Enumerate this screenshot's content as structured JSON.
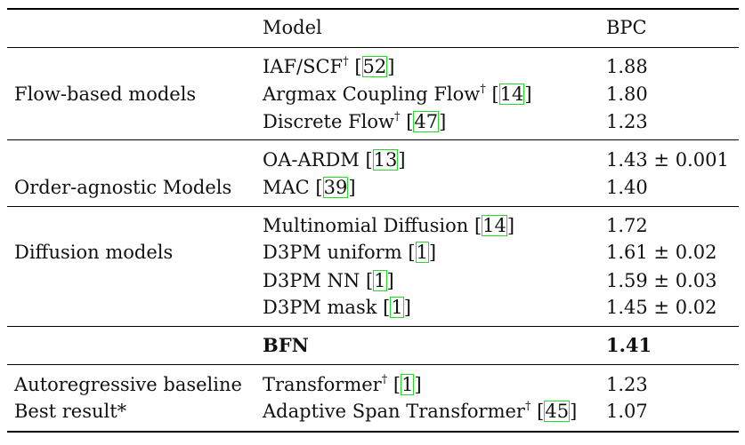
{
  "header": {
    "model": "Model",
    "bpc": "BPC"
  },
  "groups": [
    {
      "label": "Flow-based models",
      "rows": [
        {
          "model": "IAF/SCF",
          "dagger": "†",
          "cite": "52",
          "bpc": "1.88"
        },
        {
          "model": "Argmax Coupling Flow",
          "dagger": "†",
          "cite": "14",
          "bpc": "1.80"
        },
        {
          "model": "Discrete Flow",
          "dagger": "†",
          "cite": "47",
          "bpc": "1.23"
        }
      ]
    },
    {
      "label": "Order-agnostic Models",
      "rows": [
        {
          "model": "OA-ARDM",
          "cite": "13",
          "bpc": "1.43 ± 0.001"
        },
        {
          "model": "MAC",
          "cite": "39",
          "bpc": "1.40"
        }
      ]
    },
    {
      "label": "Diffusion models",
      "rows": [
        {
          "model": "Multinomial Diffusion",
          "cite": "14",
          "bpc": "1.72"
        },
        {
          "model": "D3PM uniform",
          "cite": "1",
          "bpc": "1.61 ± 0.02"
        },
        {
          "model": "D3PM NN",
          "cite": "1",
          "bpc": "1.59 ± 0.03"
        },
        {
          "model": "D3PM mask",
          "cite": "1",
          "bpc": "1.45 ± 0.02"
        }
      ]
    },
    {
      "rows": [
        {
          "model": "BFN",
          "bpc": "1.41"
        }
      ]
    },
    {
      "rows": [
        {
          "label": "Autoregressive baseline",
          "model": "Transformer",
          "dagger": "†",
          "cite": "1",
          "bpc": "1.23"
        },
        {
          "label": "Best result*",
          "model": "Adaptive Span Transformer",
          "dagger": "†",
          "cite": "45",
          "bpc": "1.07"
        }
      ]
    }
  ]
}
